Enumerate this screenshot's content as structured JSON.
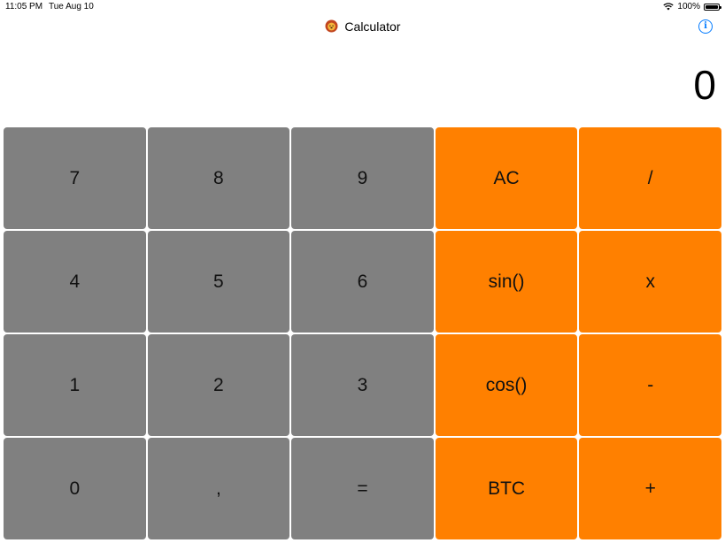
{
  "status_bar": {
    "time": "11:05 PM",
    "date": "Tue Aug 10",
    "battery": "100%",
    "battery_level": 1.0,
    "icons": [
      "wifi-icon",
      "battery-icon"
    ]
  },
  "nav": {
    "title": "Calculator",
    "title_icon": "lion-emoji-icon",
    "info_icon": "info-icon",
    "info_label": "i"
  },
  "display": {
    "value": "0"
  },
  "keypad": {
    "rows": [
      [
        {
          "label": "7",
          "type": "number",
          "name": "key-7"
        },
        {
          "label": "8",
          "type": "number",
          "name": "key-8"
        },
        {
          "label": "9",
          "type": "number",
          "name": "key-9"
        },
        {
          "label": "AC",
          "type": "operator",
          "name": "key-ac"
        },
        {
          "label": "/",
          "type": "operator",
          "name": "key-divide"
        }
      ],
      [
        {
          "label": "4",
          "type": "number",
          "name": "key-4"
        },
        {
          "label": "5",
          "type": "number",
          "name": "key-5"
        },
        {
          "label": "6",
          "type": "number",
          "name": "key-6"
        },
        {
          "label": "sin()",
          "type": "operator",
          "name": "key-sin"
        },
        {
          "label": "x",
          "type": "operator",
          "name": "key-multiply"
        }
      ],
      [
        {
          "label": "1",
          "type": "number",
          "name": "key-1"
        },
        {
          "label": "2",
          "type": "number",
          "name": "key-2"
        },
        {
          "label": "3",
          "type": "number",
          "name": "key-3"
        },
        {
          "label": "cos()",
          "type": "operator",
          "name": "key-cos"
        },
        {
          "label": "-",
          "type": "operator",
          "name": "key-subtract"
        }
      ],
      [
        {
          "label": "0",
          "type": "number",
          "name": "key-0"
        },
        {
          "label": ",",
          "type": "number",
          "name": "key-comma"
        },
        {
          "label": "=",
          "type": "number",
          "name": "key-equals"
        },
        {
          "label": "BTC",
          "type": "operator",
          "name": "key-btc"
        },
        {
          "label": "+",
          "type": "operator",
          "name": "key-add"
        }
      ]
    ]
  },
  "colors": {
    "number_key": "#808080",
    "operator_key": "#ff8000",
    "accent": "#007aff",
    "background": "#ffffff"
  }
}
